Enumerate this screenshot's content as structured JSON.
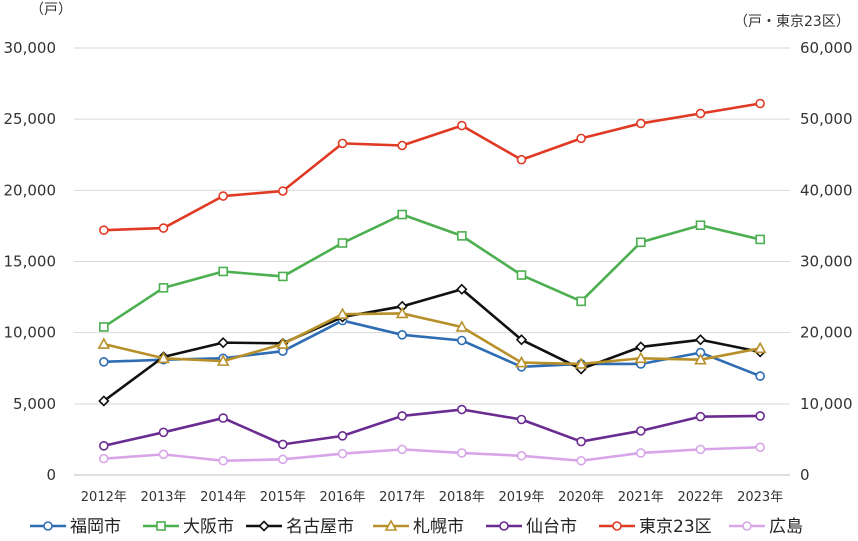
{
  "chart_data": {
    "type": "line",
    "left_axis_unit": "（戸）",
    "right_axis_unit": "（戸・東京23区）",
    "categories": [
      "2012年",
      "2013年",
      "2014年",
      "2015年",
      "2016年",
      "2017年",
      "2018年",
      "2019年",
      "2020年",
      "2021年",
      "2022年",
      "2023年"
    ],
    "left_ylim": [
      0,
      30000
    ],
    "right_ylim": [
      0,
      60000
    ],
    "left_ticks": [
      "0",
      "5,000",
      "10,000",
      "15,000",
      "20,000",
      "25,000",
      "30,000"
    ],
    "right_ticks": [
      "0",
      "10,000",
      "20,000",
      "30,000",
      "40,000",
      "50,000",
      "60,000"
    ],
    "grid": true,
    "legend_position": "bottom",
    "series": [
      {
        "name": "福岡市",
        "axis": "left",
        "color": "#2E6DB4",
        "marker": "circle",
        "values": [
          7950,
          8100,
          8200,
          8700,
          10850,
          9850,
          9450,
          7600,
          7800,
          7800,
          8600,
          6950
        ]
      },
      {
        "name": "大阪市",
        "axis": "left",
        "color": "#4CAF50",
        "marker": "square",
        "values": [
          10400,
          13150,
          14300,
          13950,
          16300,
          18300,
          16800,
          14050,
          12200,
          16350,
          17550,
          16550
        ]
      },
      {
        "name": "名古屋市",
        "axis": "left",
        "color": "#111111",
        "marker": "diamond",
        "values": [
          5200,
          8300,
          9300,
          9250,
          11100,
          11850,
          13050,
          9500,
          7450,
          9000,
          9500,
          8650
        ]
      },
      {
        "name": "札幌市",
        "axis": "left",
        "color": "#B8902A",
        "marker": "triangle",
        "values": [
          9200,
          8200,
          8000,
          9200,
          11300,
          11350,
          10400,
          7900,
          7800,
          8200,
          8100,
          8900
        ]
      },
      {
        "name": "仙台市",
        "axis": "left",
        "color": "#6A2C91",
        "marker": "circle",
        "values": [
          2050,
          3000,
          4000,
          2150,
          2750,
          4150,
          4600,
          3900,
          2350,
          3100,
          4100,
          4150
        ]
      },
      {
        "name": "東京23区",
        "axis": "right",
        "color": "#E03A24",
        "marker": "circle",
        "values": [
          34400,
          34700,
          39200,
          39900,
          46600,
          46300,
          49100,
          44300,
          47300,
          49400,
          50800,
          52200
        ]
      },
      {
        "name": "広島",
        "axis": "left",
        "color": "#D8A6E8",
        "marker": "circle",
        "values": [
          1150,
          1450,
          1000,
          1100,
          1500,
          1800,
          1550,
          1350,
          1000,
          1550,
          1800,
          1950
        ]
      }
    ]
  }
}
